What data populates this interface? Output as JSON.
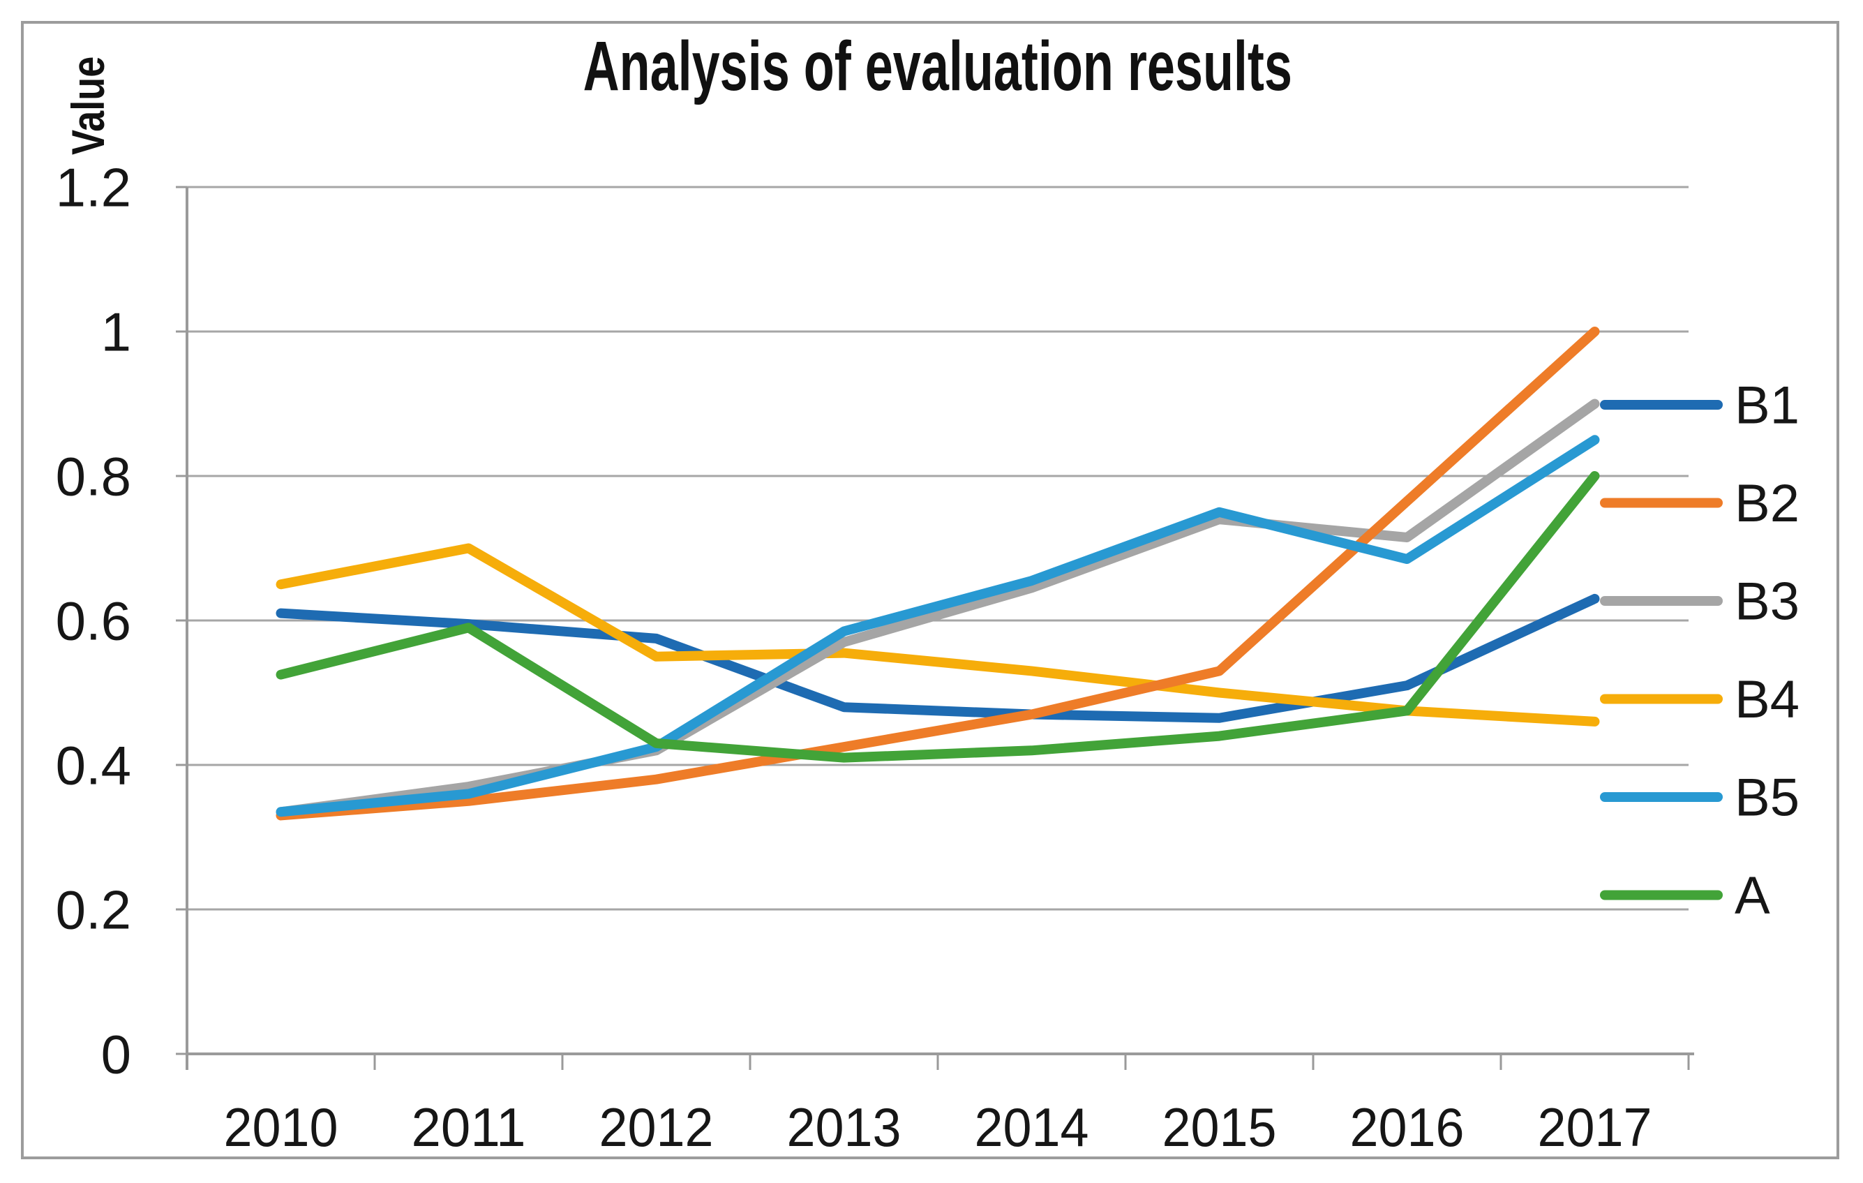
{
  "page": {
    "background": "#ffffff",
    "border_color": "#9c9c9c"
  },
  "chart_data": {
    "type": "line",
    "title": "Analysis of evaluation results",
    "ylabel": "Value",
    "xlabel": "",
    "categories": [
      "2010",
      "2011",
      "2012",
      "2013",
      "2014",
      "2015",
      "2016",
      "2017"
    ],
    "series": [
      {
        "name": "B1",
        "color": "#1e6bb2",
        "values": [
          0.61,
          0.595,
          0.575,
          0.48,
          0.47,
          0.465,
          0.51,
          0.63
        ]
      },
      {
        "name": "B2",
        "color": "#ee7c28",
        "values": [
          0.33,
          0.35,
          0.38,
          0.425,
          0.47,
          0.53,
          0.765,
          1.0
        ]
      },
      {
        "name": "B3",
        "color": "#a5a5a5",
        "values": [
          0.335,
          0.37,
          0.42,
          0.57,
          0.645,
          0.74,
          0.715,
          0.9
        ]
      },
      {
        "name": "B4",
        "color": "#f6ad0a",
        "values": [
          0.65,
          0.7,
          0.55,
          0.555,
          0.53,
          0.5,
          0.475,
          0.46
        ]
      },
      {
        "name": "B5",
        "color": "#2899d2",
        "values": [
          0.335,
          0.36,
          0.425,
          0.585,
          0.655,
          0.75,
          0.685,
          0.85
        ]
      },
      {
        "name": "A",
        "color": "#42a338",
        "values": [
          0.525,
          0.59,
          0.43,
          0.41,
          0.42,
          0.44,
          0.475,
          0.8
        ]
      }
    ],
    "draw_order": [
      "B1",
      "B4",
      "B3",
      "B2",
      "B5",
      "A"
    ],
    "ylim": [
      0,
      1.2
    ],
    "yticks": {
      "values": [
        0,
        0.2,
        0.4,
        0.6,
        0.8,
        1,
        1.2
      ],
      "labels": [
        "0",
        "0.2",
        "0.4",
        "0.6",
        "0.8",
        "1",
        "1.2"
      ]
    },
    "grid": "horizontal",
    "gridline_color": "#a6a6a6",
    "axis_color": "#9a9a9a",
    "tick_color": "#9a9a9a",
    "text_color": "#161616",
    "legend_position": "right",
    "legend_labels": [
      "B1",
      "B2",
      "B3",
      "B4",
      "B5",
      "A"
    ]
  }
}
